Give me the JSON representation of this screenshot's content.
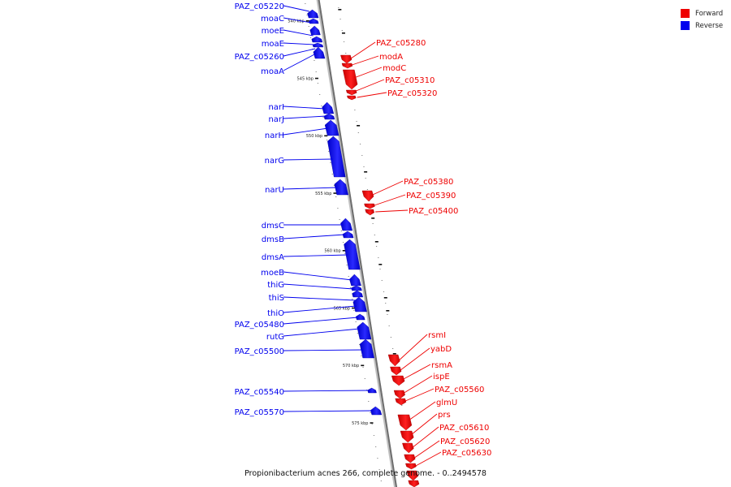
{
  "legend": {
    "forward_label": "Forward",
    "reverse_label": "Reverse",
    "forward_color": "#ee0000",
    "reverse_color": "#0000ee"
  },
  "caption": "Propionibacterium acnes 266, complete genome. - 0..2494578",
  "kbp_ticks": [
    {
      "label": "540 kbp",
      "pos": 540
    },
    {
      "label": "545 kbp",
      "pos": 545
    },
    {
      "label": "550 kbp",
      "pos": 550
    },
    {
      "label": "555 kbp",
      "pos": 555
    },
    {
      "label": "560 kbp",
      "pos": 560
    },
    {
      "label": "565 kbp",
      "pos": 565
    },
    {
      "label": "570 kbp",
      "pos": 570
    },
    {
      "label": "575 kbp",
      "pos": 575
    }
  ],
  "reverse_genes": [
    "PAZ_c05220",
    "moaC",
    "moeE",
    "moaE",
    "PAZ_c05260",
    "moaA",
    "narI",
    "narJ",
    "narH",
    "narG",
    "narU",
    "dmsC",
    "dmsB",
    "dmsA",
    "moeB",
    "thiG",
    "thiS",
    "thiO",
    "PAZ_c05480",
    "rutG",
    "PAZ_c05500",
    "PAZ_c05540",
    "PAZ_c05570"
  ],
  "forward_genes": [
    "PAZ_c05280",
    "modA",
    "modC",
    "PAZ_c05310",
    "PAZ_c05320",
    "PAZ_c05380",
    "PAZ_c05390",
    "PAZ_c05400",
    "rsmI",
    "yabD",
    "rsmA",
    "ispE",
    "PAZ_c05560",
    "glmU",
    "prs",
    "PAZ_c05610",
    "PAZ_c05620",
    "PAZ_c05630"
  ]
}
